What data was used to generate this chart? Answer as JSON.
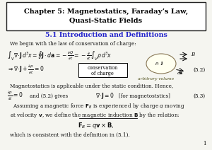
{
  "background_color": "#e8e8e0",
  "page_color": "#f5f5f0",
  "border_color": "#222222",
  "title_line1": "Chapter 5: Magnetostatics, Faraday’s Law,",
  "title_line2": "Quasi-Static Fields",
  "subtitle": "5.1 Introduction and Definitions",
  "subtitle_color": "#2222cc",
  "body_color": "#111111",
  "figsize": [
    3.0,
    2.12
  ],
  "dpi": 100
}
